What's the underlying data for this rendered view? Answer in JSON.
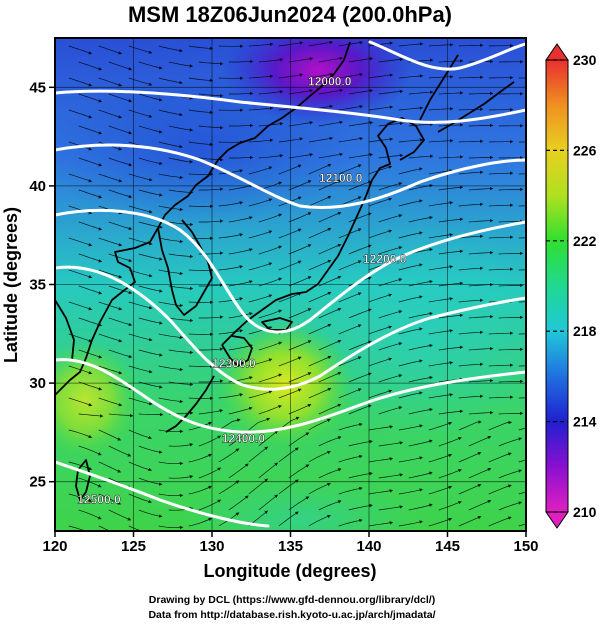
{
  "title": "MSM 18Z06Jun2024 (200.0hPa)",
  "axes": {
    "xlabel": "Longitude (degrees)",
    "ylabel": "Latitude  (degrees)",
    "xlim": [
      120,
      150
    ],
    "ylim": [
      22.5,
      47.5
    ],
    "xticks": [
      120,
      125,
      130,
      135,
      140,
      145,
      150
    ],
    "yticks": [
      25,
      30,
      35,
      40,
      45
    ],
    "grid": true
  },
  "colorbar": {
    "range": [
      210,
      230
    ],
    "ticks": [
      210,
      214,
      218,
      222,
      226,
      230
    ],
    "stops": [
      "#e020c0",
      "#8a10d0",
      "#2020d0",
      "#2070e0",
      "#20c8d8",
      "#20d890",
      "#30e030",
      "#b0e020",
      "#e8d020",
      "#f09020",
      "#e83030"
    ]
  },
  "contour_labels": [
    {
      "text": "12000.0",
      "lon": 137.5,
      "lat": 45.1
    },
    {
      "text": "12100.0",
      "lon": 138.2,
      "lat": 40.2
    },
    {
      "text": "12200.0",
      "lon": 141.0,
      "lat": 36.1
    },
    {
      "text": "12300.0",
      "lon": 131.4,
      "lat": 30.8
    },
    {
      "text": "12400.0",
      "lon": 132.0,
      "lat": 27.0
    },
    {
      "text": "12500.0",
      "lon": 122.8,
      "lat": 23.9
    }
  ],
  "credits": {
    "line1": "Drawing by DCL (https://www.gfd-dennou.org/library/dcl/)",
    "line2": "Data from http://database.rish.kyoto-u.ac.jp/arch/jmadata/"
  },
  "colors": {
    "contour": "#ffffff",
    "coast": "#000000",
    "streamline": "#000000"
  }
}
